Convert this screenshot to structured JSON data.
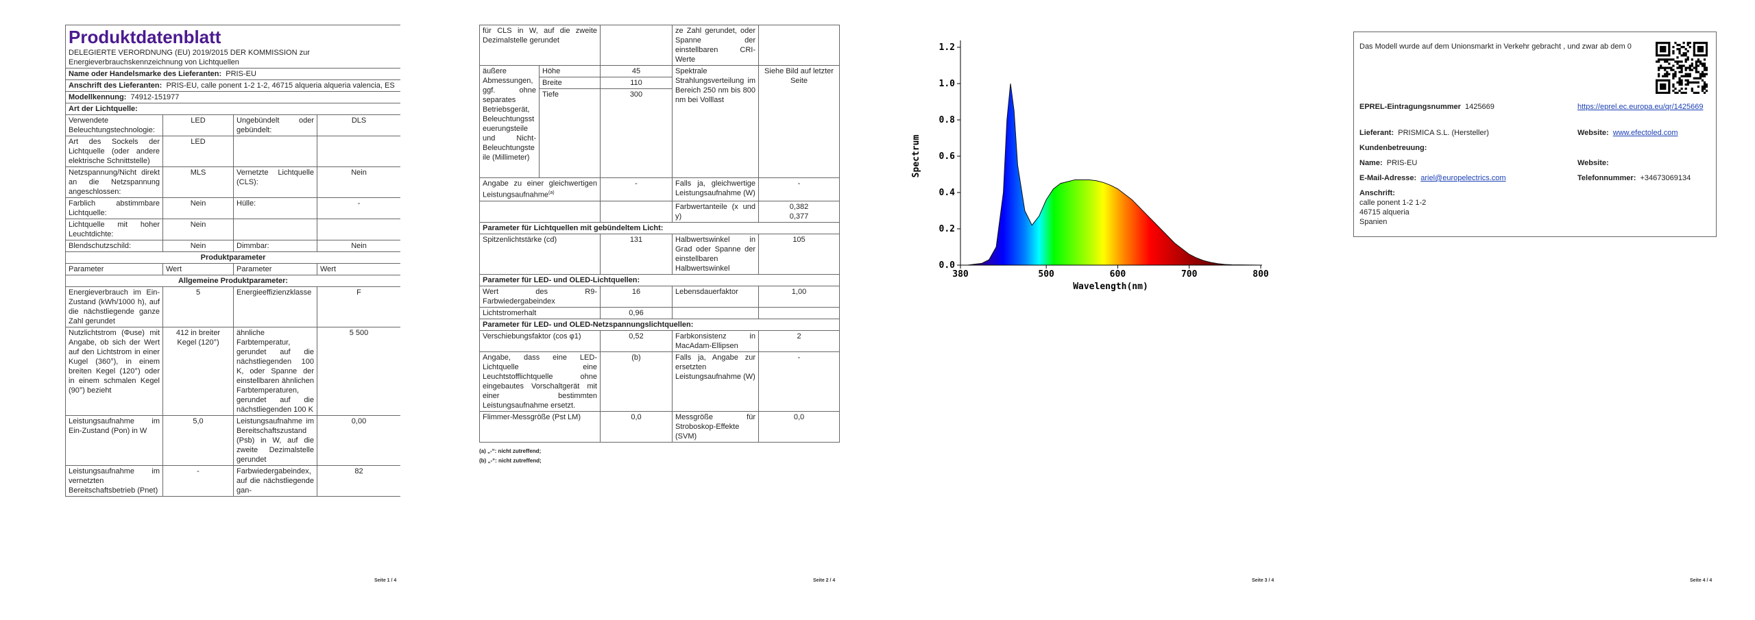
{
  "pages": [
    {
      "title": "Produktdatenblatt",
      "subtitle": "DELEGIERTE VERORDNUNG (EU) 2019/2015 DER KOMMISSION zur Energieverbrauchskennzeichnung von Lichtquellen",
      "supplier": [
        {
          "label": "Name oder Handelsmarke des Lieferanten:",
          "value": "PRIS-EU"
        },
        {
          "label": "Anschrift des Lieferanten:",
          "value": "PRIS-EU, calle ponent 1-2 1-2, 46715 alqueria alqueria valencia, ES"
        },
        {
          "label": "Modellkennung:",
          "value": "74912-151977"
        }
      ],
      "light_source_heading": "Art der Lichtquelle:",
      "light_source": [
        [
          "Verwendete Beleuchtungstechnologie:",
          "LED",
          "Ungebündelt oder gebündelt:",
          "DLS"
        ],
        [
          "Art des Sockels der Lichtquelle (oder andere elektrische Schnittstelle)",
          "LED"
        ],
        [
          "Netzspannung/Nicht direkt an die Netzspannung angeschlossen:",
          "MLS",
          "Vernetzte Lichtquelle (CLS):",
          "Nein"
        ],
        [
          "Farblich abstimmbare Lichtquelle:",
          "Nein",
          "Hülle:",
          "-"
        ],
        [
          "Lichtquelle mit hoher Leuchtdichte:",
          "Nein"
        ],
        [
          "Blendschutzschild:",
          "Nein",
          "Dimmbar:",
          "Nein"
        ]
      ],
      "product_heading": "Produktparameter",
      "columns": [
        "Parameter",
        "Wert",
        "Parameter",
        "Wert"
      ],
      "general_heading": "Allgemeine Produktparameter:",
      "general": [
        [
          "Energieverbrauch im Ein-Zustand (kWh/1000 h), auf die nächstliegende ganze Zahl gerundet",
          "5",
          "Energieeffizienzklasse",
          "F"
        ],
        [
          "Nutzlichtstrom (Φuse) mit Angabe, ob sich der Wert auf den Lichtstrom in einer Kugel (360°), in einem breiten Kegel (120°) oder in einem schmalen Kegel (90°) bezieht",
          "412 in breiter Kegel (120°)",
          "ähnliche Farbtemperatur, gerundet auf die nächstliegenden 100 K, oder Spanne der einstellbaren ähnlichen Farbtemperaturen, gerundet auf die nächstliegenden 100 K",
          "5 500"
        ],
        [
          "Leistungsaufnahme im Ein-Zustand (Pon) in W",
          "5,0",
          "Leistungsaufnahme im Bereitschaftszustand (Psb) in W, auf die zweite Dezimalstelle gerundet",
          "0,00"
        ],
        [
          "Leistungsaufnahme im vernetzten Bereitschaftsbetrieb (Pnet)",
          "-",
          "Farbwiedergabeindex, auf die nächstliegende gan-",
          "82"
        ]
      ],
      "footer": "Seite 1 / 4"
    },
    {
      "continued": [
        "für CLS in W, auf die zweite Dezimalstelle gerundet",
        "ze Zahl gerundet, oder Spanne der einstellbaren CRI-Werte"
      ],
      "dimensions": {
        "label": "äußere Abmessungen, ggf. ohne separates Betriebsgerät, Beleuchtungssteuerungsteile und Nicht-Beleuchtungsteile (Millimeter)",
        "parts": [
          [
            "Höhe",
            "45"
          ],
          [
            "Breite",
            "110"
          ],
          [
            "Tiefe",
            "300"
          ]
        ],
        "spectral_label": "Spektrale Strahlungsverteilung im Bereich 250 nm bis 800 nm bei Volllast",
        "spectral_value": "Siehe Bild auf letzter Seite"
      },
      "equivalent": [
        "Angabe zu einer gleichwertigen Leistungsaufnahme",
        "-",
        "Falls ja, gleichwertige Leistungsaufnahme (W)",
        "-"
      ],
      "equivalent_note": "(a)",
      "chromaticity": {
        "label": "Farbwertanteile (x und y)",
        "values": [
          "0,382",
          "0,377"
        ]
      },
      "directional_heading": "Parameter für Lichtquellen mit gebündeltem Licht:",
      "directional": [
        [
          "Spitzenlichtstärke (cd)",
          "131",
          "Halbwertswinkel in Grad oder Spanne der einstellbaren Halbwertswinkel",
          "105"
        ]
      ],
      "led_heading": "Parameter für LED- und OLED-Lichtquellen:",
      "led": [
        [
          "Wert des R9-Farbwiedergabeindex",
          "16",
          "Lebensdauerfaktor",
          "1,00"
        ],
        [
          "Lichtstromerhalt",
          "0,96"
        ]
      ],
      "mains_heading": "Parameter für LED- und OLED-Netzspannungslichtquellen:",
      "mains": [
        [
          "Verschiebungsfaktor (cos φ1)",
          "0,52",
          "Farbkonsistenz in MacAdam-Ellipsen",
          "2"
        ],
        [
          "Angabe, dass eine LED-Lichtquelle eine Leuchtstofflichtquelle ohne eingebautes Vorschaltgerät mit einer bestimmten Leistungsaufnahme ersetzt.",
          "(b)",
          "Falls ja, Angabe zur ersetzten Leistungsaufnahme (W)",
          "-"
        ],
        [
          "Flimmer-Messgröße (Pst LM)",
          "0,0",
          "Messgröße für Stroboskop-Effekte (SVM)",
          "0,0"
        ]
      ],
      "footnotes": [
        "(a) „-“: nicht zutreffend;",
        "(b) „-“: nicht zutreffend;"
      ],
      "footer": "Seite 2 / 4"
    },
    {
      "chart": {
        "type": "area",
        "xlabel": "Wavelength(nm)",
        "ylabel": "Spectrum",
        "x": [
          380,
          390,
          400,
          410,
          420,
          430,
          440,
          445,
          450,
          455,
          460,
          470,
          480,
          490,
          500,
          510,
          520,
          530,
          540,
          550,
          560,
          570,
          580,
          590,
          600,
          610,
          620,
          630,
          640,
          650,
          660,
          670,
          680,
          690,
          700,
          710,
          720,
          730,
          740,
          750,
          760,
          780,
          800
        ],
        "values": [
          0,
          0,
          0.005,
          0.01,
          0.03,
          0.1,
          0.4,
          0.8,
          1.0,
          0.85,
          0.55,
          0.3,
          0.22,
          0.27,
          0.36,
          0.42,
          0.45,
          0.46,
          0.47,
          0.47,
          0.47,
          0.465,
          0.455,
          0.44,
          0.42,
          0.39,
          0.36,
          0.32,
          0.28,
          0.24,
          0.2,
          0.16,
          0.12,
          0.09,
          0.06,
          0.04,
          0.025,
          0.015,
          0.008,
          0.004,
          0.002,
          0.001,
          0
        ],
        "xlim": [
          380,
          800
        ],
        "ylim": [
          0,
          1.2
        ],
        "xticks": [
          380,
          500,
          600,
          700,
          800
        ],
        "yticks": [
          {
            "value": 0,
            "label": "0.0"
          },
          0.2,
          0.4,
          0.6,
          0.8,
          {
            "value": 1,
            "label": "1.0"
          },
          1.2
        ]
      },
      "footer": "Seite 3 / 4"
    },
    {
      "intro": "Das Modell wurde auf dem Unionsmarkt in Verkehr gebracht , und zwar ab dem 0",
      "eprel_label": "EPREL-Eintragungsnummer",
      "eprel_number": "1425669",
      "eprel_link": "https://eprel.ec.europa.eu/qr/1425669",
      "supplier_label": "Lieferant:",
      "supplier_value": "PRISMICA S.L. (Hersteller)",
      "website_label": "Website:",
      "website_value": "www.efectoled.com",
      "service_heading": "Kundenbetreuung:",
      "name_label": "Name:",
      "name_value": "PRIS-EU",
      "service_website_label": "Website:",
      "email_label": "E-Mail-Adresse:",
      "email_value": "ariel@europelectrics.com",
      "phone_label": "Telefonnummer:",
      "phone_value": "+34673069134",
      "address_label": "Anschrift:",
      "address_lines": [
        "calle ponent 1-2 1-2",
        "46715 alqueria",
        "Spanien"
      ],
      "footer": "Seite 4 / 4"
    }
  ]
}
